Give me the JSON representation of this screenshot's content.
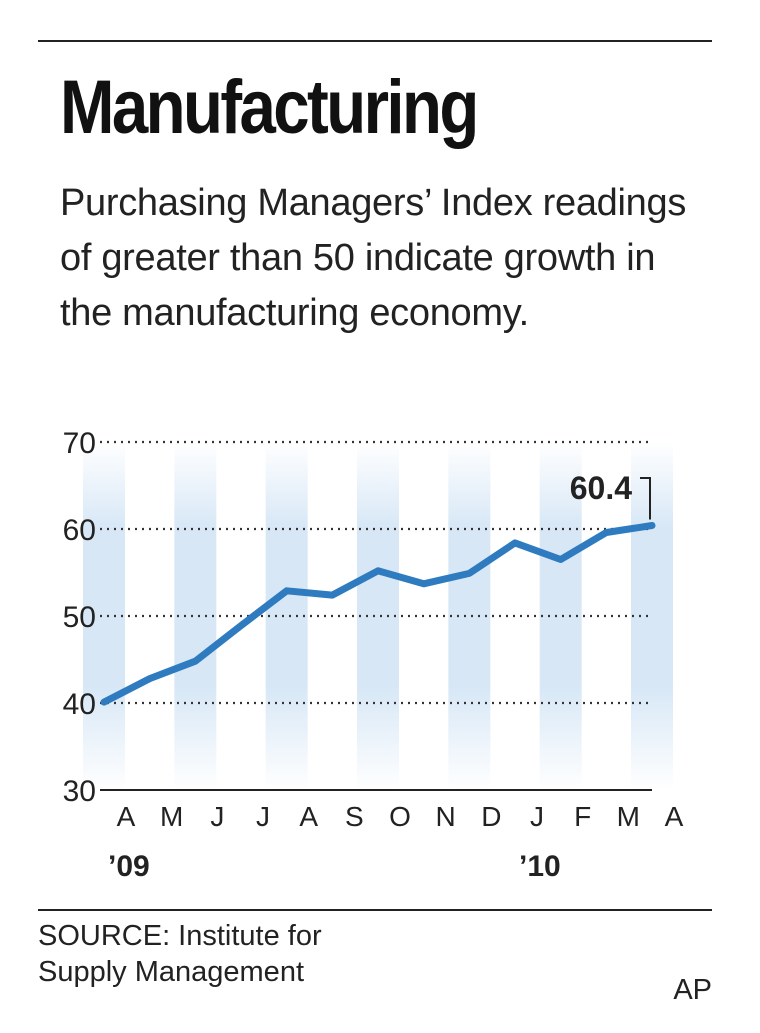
{
  "header": {
    "title": "Manufacturing",
    "subtitle": "Purchasing Managers’ Index readings of greater than 50 indicate growth in the manufacturing economy."
  },
  "chart_data": {
    "type": "line",
    "title": "",
    "xlabel": "",
    "ylabel": "",
    "categories": [
      "A",
      "M",
      "J",
      "J",
      "A",
      "S",
      "O",
      "N",
      "D",
      "J",
      "F",
      "M",
      "A"
    ],
    "year_labels": [
      {
        "label": "’09",
        "category_index": 0
      },
      {
        "label": "’10",
        "category_index": 9
      }
    ],
    "series": [
      {
        "values": [
          40.1,
          42.8,
          44.8,
          48.9,
          52.9,
          52.4,
          55.2,
          53.7,
          54.9,
          58.4,
          56.5,
          59.6,
          60.4
        ]
      }
    ],
    "ylim": [
      30,
      70
    ],
    "yticks": [
      30,
      40,
      50,
      60,
      70
    ],
    "grid": true,
    "annotation": {
      "label": "60.4",
      "category_index": 12,
      "value": 60.4
    },
    "colors": {
      "line": "#2f7bbf",
      "band": "#d5e6f5",
      "grid": "#333333"
    }
  },
  "footer": {
    "source_line1": "SOURCE: Institute for",
    "source_line2": "Supply Management",
    "credit": "AP"
  }
}
